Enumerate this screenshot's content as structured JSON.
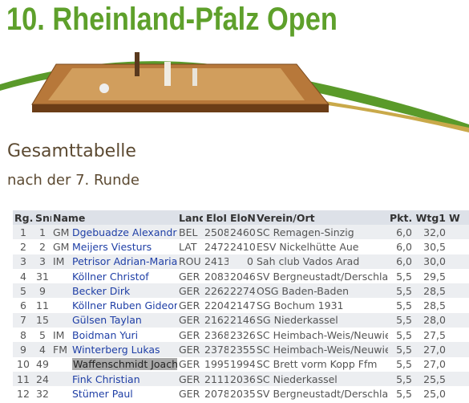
{
  "header": {
    "title": "10. Rheinland-Pfalz Open"
  },
  "section": {
    "heading": "Gesamttabelle",
    "subheading": "nach der 7. Runde"
  },
  "table": {
    "columns": [
      "Rg.",
      "Snr",
      "Name",
      "Land",
      "EloI",
      "EloN",
      "Verein/Ort",
      "Pkt.",
      "Wtg1",
      "W"
    ],
    "rows": [
      [
        "1",
        "1",
        "GM",
        "Dgebuadze Alexandre",
        "BEL",
        "2508",
        "2460",
        "SC Remagen-Sinzig",
        "6,0",
        "32,0"
      ],
      [
        "2",
        "2",
        "GM",
        "Meijers Viesturs",
        "LAT",
        "2472",
        "2410",
        "ESV Nickelhütte Aue",
        "6,0",
        "30,5"
      ],
      [
        "3",
        "3",
        "IM",
        "Petrisor Adrian-Marian",
        "ROU",
        "2413",
        "0",
        "Sah club Vados Arad",
        "6,0",
        "30,0"
      ],
      [
        "4",
        "31",
        null,
        "Köllner Christof",
        "GER",
        "2083",
        "2046",
        "SV Bergneustadt/Derschlag",
        "5,5",
        "29,5"
      ],
      [
        "5",
        "9",
        null,
        "Becker Dirk",
        "GER",
        "2262",
        "2274",
        "OSG Baden-Baden",
        "5,5",
        "28,5"
      ],
      [
        "6",
        "11",
        null,
        "Köllner Ruben Gideon",
        "GER",
        "2204",
        "2147",
        "SG Bochum 1931",
        "5,5",
        "28,5"
      ],
      [
        "7",
        "15",
        null,
        "Gülsen Taylan",
        "GER",
        "2162",
        "2146",
        "SG Niederkassel",
        "5,5",
        "28,0"
      ],
      [
        "8",
        "5",
        "IM",
        "Boidman Yuri",
        "GER",
        "2368",
        "2326",
        "SC Heimbach-Weis/Neuwied",
        "5,5",
        "27,5"
      ],
      [
        "9",
        "4",
        "FM",
        "Winterberg Lukas",
        "GER",
        "2378",
        "2355",
        "SC Heimbach-Weis/Neuwied",
        "5,5",
        "27,0"
      ],
      [
        "10",
        "49",
        null,
        "Waffenschmidt Joachim",
        "GER",
        "1995",
        "1994",
        "SC Brett vorm Kopp Ffm",
        "5,5",
        "27,0"
      ],
      [
        "11",
        "24",
        null,
        "Fink Christian",
        "GER",
        "2111",
        "2036",
        "SC Niederkassel",
        "5,5",
        "25,5"
      ],
      [
        "12",
        "32",
        null,
        "Stümer Paul",
        "GER",
        "2078",
        "2035",
        "SV Bergneustadt/Derschlag",
        "5,5",
        "25,0"
      ]
    ]
  }
}
